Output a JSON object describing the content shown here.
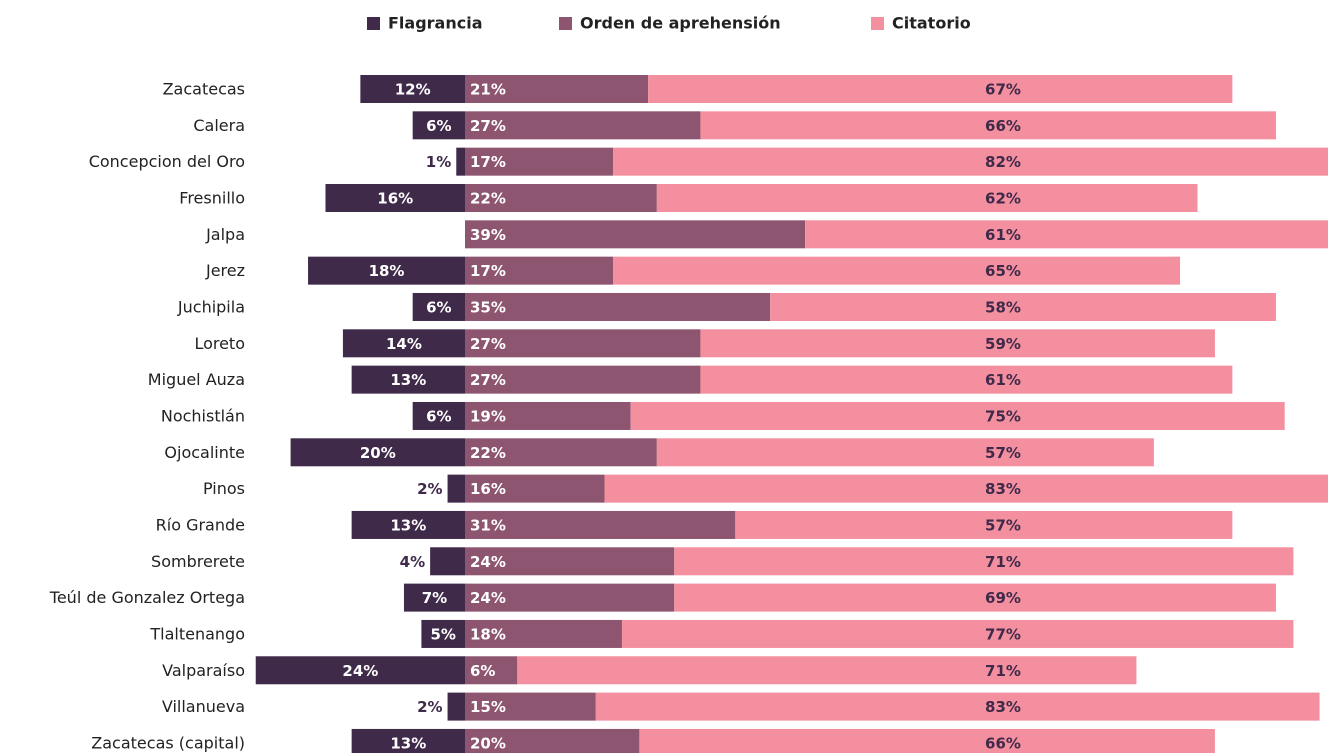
{
  "chart_data": {
    "type": "bar",
    "orientation": "horizontal",
    "stacked": true,
    "diverging": true,
    "legend": "top",
    "categories": [
      "Zacatecas",
      "Calera",
      "Concepcion del Oro",
      "Fresnillo",
      "Jalpa",
      "Jerez",
      "Juchipila",
      "Loreto",
      "Miguel Auza",
      "Nochistlán",
      "Ojocalinte",
      "Pinos",
      "Río Grande",
      "Sombrerete",
      "Teúl de Gonzalez Ortega",
      "Tlaltenango",
      "Valparaíso",
      "Villanueva",
      "Zacatecas (capital)"
    ],
    "series": [
      {
        "name": "Flagrancia",
        "color": "#3f2a4a",
        "values": [
          12,
          6,
          1,
          16,
          null,
          18,
          6,
          14,
          13,
          6,
          20,
          2,
          13,
          4,
          7,
          5,
          24,
          2,
          13
        ],
        "value_labels": [
          "12%",
          "6%",
          "1%",
          "16%",
          null,
          "18%",
          "6%",
          "14%",
          "13%",
          "6%",
          "20%",
          "2%",
          "13%",
          "4%",
          "7%",
          "5%",
          "24%",
          "2%",
          "13%"
        ]
      },
      {
        "name": "Orden de aprehensión",
        "color": "#8e5570",
        "values": [
          21,
          27,
          17,
          22,
          39,
          17,
          35,
          27,
          27,
          19,
          22,
          16,
          31,
          24,
          24,
          18,
          6,
          15,
          20
        ],
        "value_labels": [
          "21%",
          "27%",
          "17%",
          "22%",
          "39%",
          "17%",
          "35%",
          "27%",
          "27%",
          "19%",
          "22%",
          "16%",
          "31%",
          "24%",
          "24%",
          "18%",
          "6%",
          "15%",
          "20%"
        ]
      },
      {
        "name": "Citatorio",
        "color": "#f48fa0",
        "values": [
          67,
          66,
          82,
          62,
          61,
          65,
          58,
          59,
          61,
          75,
          57,
          83,
          57,
          71,
          69,
          77,
          71,
          83,
          66
        ],
        "value_labels": [
          "67%",
          "66%",
          "82%",
          "62%",
          "61%",
          "65%",
          "58%",
          "59%",
          "61%",
          "75%",
          "57%",
          "83%",
          "57%",
          "71%",
          "69%",
          "77%",
          "71%",
          "83%",
          "66%"
        ]
      }
    ]
  }
}
